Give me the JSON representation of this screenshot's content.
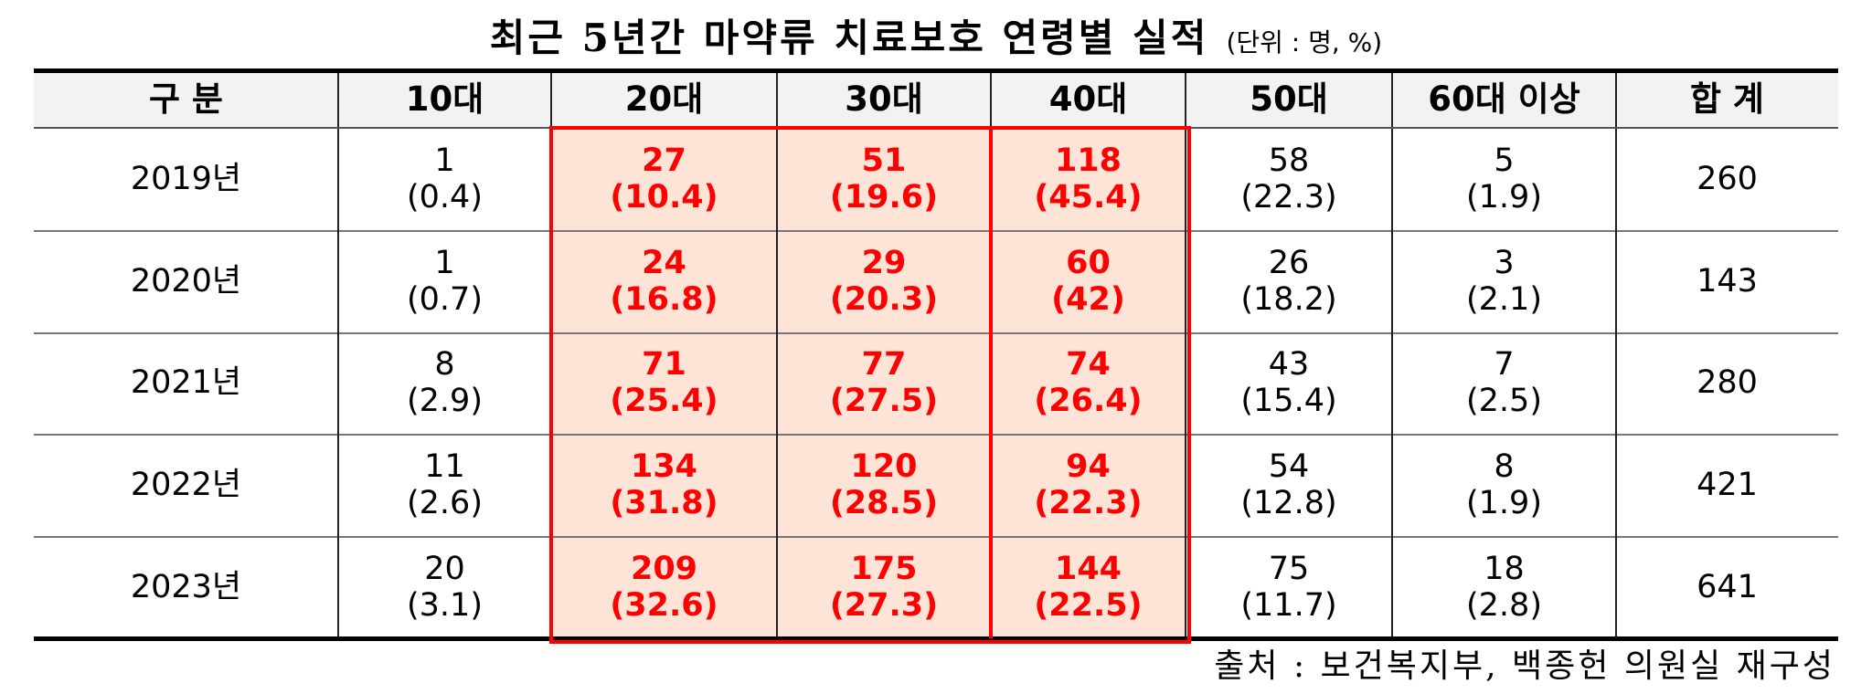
{
  "title": "최근 5년간 마약류 치료보호 연령별 실적",
  "unit": "(단위 : 명, %)",
  "table": {
    "headers": [
      "구 분",
      "10대",
      "20대",
      "30대",
      "40대",
      "50대",
      "60대 이상",
      "합 계"
    ],
    "rows": [
      [
        "2019년",
        [
          "1",
          "(0.4)"
        ],
        [
          "27",
          "(10.4)"
        ],
        [
          "51",
          "(19.6)"
        ],
        [
          "118",
          "(45.4)"
        ],
        [
          "58",
          "(22.3)"
        ],
        [
          "5",
          "(1.9)"
        ],
        "260"
      ],
      [
        "2020년",
        [
          "1",
          "(0.7)"
        ],
        [
          "24",
          "(16.8)"
        ],
        [
          "29",
          "(20.3)"
        ],
        [
          "60",
          "(42)"
        ],
        [
          "26",
          "(18.2)"
        ],
        [
          "3",
          "(2.1)"
        ],
        "143"
      ],
      [
        "2021년",
        [
          "8",
          "(2.9)"
        ],
        [
          "71",
          "(25.4)"
        ],
        [
          "77",
          "(27.5)"
        ],
        [
          "74",
          "(26.4)"
        ],
        [
          "43",
          "(15.4)"
        ],
        [
          "7",
          "(2.5)"
        ],
        "280"
      ],
      [
        "2022년",
        [
          "11",
          "(2.6)"
        ],
        [
          "134",
          "(31.8)"
        ],
        [
          "120",
          "(28.5)"
        ],
        [
          "94",
          "(22.3)"
        ],
        [
          "54",
          "(12.8)"
        ],
        [
          "8",
          "(1.9)"
        ],
        "421"
      ],
      [
        "2023년",
        [
          "20",
          "(3.1)"
        ],
        [
          "209",
          "(32.6)"
        ],
        [
          "175",
          "(27.3)"
        ],
        [
          "144",
          "(22.5)"
        ],
        [
          "75",
          "(11.7)"
        ],
        [
          "18",
          "(2.8)"
        ],
        "641"
      ]
    ]
  },
  "source": "출처 : 보건복지부, 백종헌 의원실 재구성"
}
